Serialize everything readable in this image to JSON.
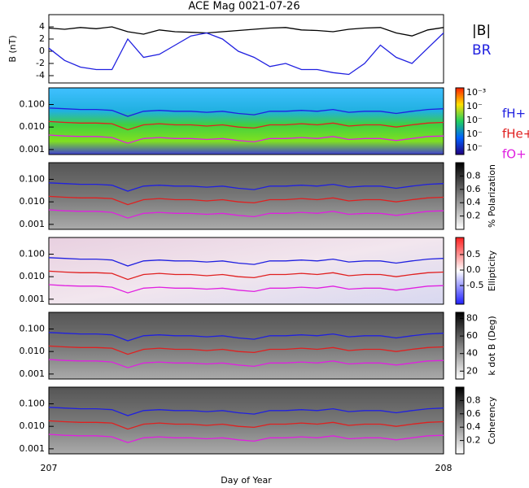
{
  "chart_data": [
    {
      "type": "line",
      "title": "ACE Mag 0021-07-26",
      "ylabel": "B (nT)",
      "x": [
        207,
        207.04,
        207.08,
        207.12,
        207.16,
        207.2,
        207.24,
        207.28,
        207.32,
        207.36,
        207.4,
        207.44,
        207.48,
        207.52,
        207.56,
        207.6,
        207.64,
        207.68,
        207.72,
        207.76,
        207.8,
        207.84,
        207.88,
        207.92,
        207.96,
        208
      ],
      "xlim": [
        207,
        208
      ],
      "ylim": [
        -5.2,
        6
      ],
      "yticks": [
        4,
        2,
        0,
        -2,
        -4
      ],
      "series": [
        {
          "name": "|B|",
          "color": "#000000",
          "values": [
            3.8,
            3.6,
            3.9,
            3.7,
            4,
            3.2,
            2.8,
            3.5,
            3.2,
            3.1,
            3,
            3.2,
            3.4,
            3.6,
            3.8,
            3.9,
            3.5,
            3.4,
            3.2,
            3.6,
            3.8,
            3.9,
            3,
            2.5,
            3.5,
            3.9
          ]
        },
        {
          "name": "BR",
          "color": "#2020e0",
          "values": [
            0.5,
            -1.5,
            -2.6,
            -3,
            -3,
            2,
            -1,
            -0.5,
            1,
            2.5,
            3,
            2,
            0,
            -1,
            -2.5,
            -2,
            -3,
            -3,
            -3.5,
            -3.8,
            -2,
            1,
            -1,
            -2,
            0.5,
            3
          ]
        }
      ]
    },
    {
      "type": "spectrogram",
      "xlabel": "Day of Year",
      "log_y": true,
      "x": [
        207,
        207.04,
        207.08,
        207.12,
        207.16,
        207.2,
        207.24,
        207.28,
        207.32,
        207.36,
        207.4,
        207.44,
        207.48,
        207.52,
        207.56,
        207.6,
        207.64,
        207.68,
        207.72,
        207.76,
        207.8,
        207.84,
        207.88,
        207.92,
        207.96,
        208
      ],
      "xlim": [
        207,
        208
      ],
      "xticks": [
        207,
        208
      ],
      "ylim": [
        0.0006,
        0.55
      ],
      "yticks": [
        {
          "value": 0.1,
          "label": "0.100"
        },
        {
          "value": 0.01,
          "label": "0.010"
        },
        {
          "value": 0.001,
          "label": "0.001"
        }
      ],
      "series": [
        {
          "name": "fH+",
          "color": "#2020e0",
          "values": [
            0.07,
            0.065,
            0.06,
            0.06,
            0.055,
            0.03,
            0.05,
            0.055,
            0.05,
            0.05,
            0.045,
            0.05,
            0.04,
            0.035,
            0.05,
            0.05,
            0.055,
            0.05,
            0.06,
            0.045,
            0.05,
            0.05,
            0.04,
            0.05,
            0.06,
            0.065
          ]
        },
        {
          "name": "fHe+",
          "color": "#e02020",
          "values": [
            0.0175,
            0.016,
            0.015,
            0.015,
            0.014,
            0.0075,
            0.0125,
            0.014,
            0.0125,
            0.0125,
            0.011,
            0.0125,
            0.01,
            0.009,
            0.0125,
            0.0125,
            0.014,
            0.0125,
            0.015,
            0.011,
            0.0125,
            0.0125,
            0.01,
            0.0125,
            0.015,
            0.016
          ]
        },
        {
          "name": "fO+",
          "color": "#e020e0",
          "values": [
            0.0044,
            0.004,
            0.0038,
            0.0038,
            0.0034,
            0.0019,
            0.0031,
            0.0034,
            0.0031,
            0.0031,
            0.0028,
            0.0031,
            0.0025,
            0.0022,
            0.0031,
            0.0031,
            0.0034,
            0.0031,
            0.0038,
            0.0028,
            0.0031,
            0.0031,
            0.0025,
            0.0031,
            0.0038,
            0.004
          ]
        }
      ],
      "panels": [
        {
          "colormap": "rainbow",
          "colorbar_labels": [
            "10⁻³",
            "10⁻",
            "10⁻",
            "10⁻",
            "10⁻"
          ]
        },
        {
          "colormap": "gray",
          "colorbar_label": "% Polarization",
          "clim": [
            0,
            1
          ],
          "cticks": [
            0.8,
            0.6,
            0.4,
            0.2
          ]
        },
        {
          "colormap": "bwr",
          "colorbar_label": "Ellipticity",
          "clim": [
            -1.1,
            1.05
          ],
          "cticks": [
            0.5,
            {
              "value": 0,
              "label": "0.0"
            },
            -0.5
          ]
        },
        {
          "colormap": "gray",
          "colorbar_label": "k dot B (Deg)",
          "clim": [
            11,
            87
          ],
          "cticks": [
            80,
            60,
            40,
            20
          ]
        },
        {
          "colormap": "gray",
          "colorbar_label": "Coherency",
          "clim": [
            0,
            1
          ],
          "cticks": [
            0.8,
            0.6,
            0.4,
            0.2
          ]
        }
      ]
    }
  ]
}
